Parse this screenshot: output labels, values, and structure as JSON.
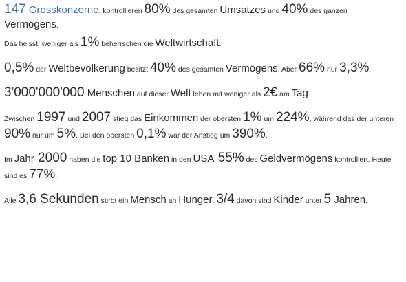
{
  "paragraphs": [
    {
      "segments": [
        {
          "text": "147",
          "size": "b",
          "color": "#3d6fa8"
        },
        {
          "text": " Grosskonzerne",
          "size": "m",
          "color": "#3d6fa8"
        },
        {
          "text": ", kontrollieren ",
          "size": "s"
        },
        {
          "text": "80%",
          "size": "b"
        },
        {
          "text": " des gesamten ",
          "size": "s"
        },
        {
          "text": "Umsatzes",
          "size": "m"
        },
        {
          "text": " und ",
          "size": "s"
        },
        {
          "text": "40%",
          "size": "b"
        },
        {
          "text": " des ganzen ",
          "size": "s"
        },
        {
          "text": "Vermögens",
          "size": "m"
        },
        {
          "text": ".",
          "size": "s"
        }
      ]
    },
    {
      "segments": [
        {
          "text": "Das heisst, weniger als ",
          "size": "s"
        },
        {
          "text": "1%",
          "size": "b"
        },
        {
          "text": " beherrschen die ",
          "size": "s"
        },
        {
          "text": "Weltwirtschaft",
          "size": "m"
        },
        {
          "text": ".",
          "size": "s"
        }
      ]
    },
    {
      "segments": [
        {
          "text": "0,5%",
          "size": "b"
        },
        {
          "text": " der ",
          "size": "s"
        },
        {
          "text": "Weltbevölkerung",
          "size": "m"
        },
        {
          "text": " besitzt ",
          "size": "s"
        },
        {
          "text": "40%",
          "size": "b"
        },
        {
          "text": " des gesamten ",
          "size": "s"
        },
        {
          "text": "Vermögens",
          "size": "m"
        },
        {
          "text": ". Aber ",
          "size": "s"
        },
        {
          "text": "66%",
          "size": "b"
        },
        {
          "text": " nur ",
          "size": "s"
        },
        {
          "text": "3,3%",
          "size": "b"
        },
        {
          "text": ".",
          "size": "s"
        }
      ]
    },
    {
      "segments": [
        {
          "text": "3'000'000'000",
          "size": "b"
        },
        {
          "text": " Menschen",
          "size": "m"
        },
        {
          "text": " auf dieser ",
          "size": "s"
        },
        {
          "text": "Welt",
          "size": "m"
        },
        {
          "text": " leben mit weniger als ",
          "size": "s"
        },
        {
          "text": "2€",
          "size": "b"
        },
        {
          "text": " am ",
          "size": "s"
        },
        {
          "text": "Tag",
          "size": "m"
        },
        {
          "text": ".",
          "size": "s"
        }
      ]
    },
    {
      "segments": [
        {
          "text": "Zwischen ",
          "size": "s"
        },
        {
          "text": "1997",
          "size": "b"
        },
        {
          "text": " und ",
          "size": "s"
        },
        {
          "text": "2007",
          "size": "b"
        },
        {
          "text": " stieg das ",
          "size": "s"
        },
        {
          "text": "Einkommen",
          "size": "m"
        },
        {
          "text": " der obersten ",
          "size": "s"
        },
        {
          "text": "1%",
          "size": "b"
        },
        {
          "text": " um ",
          "size": "s"
        },
        {
          "text": "224%",
          "size": "b"
        },
        {
          "text": ", während das der unteren ",
          "size": "s"
        },
        {
          "text": "90%",
          "size": "b"
        },
        {
          "text": " nur um ",
          "size": "s"
        },
        {
          "text": "5%",
          "size": "b"
        },
        {
          "text": ". Bei den obersten ",
          "size": "s"
        },
        {
          "text": "0,1%",
          "size": "b"
        },
        {
          "text": " war der Anstieg um ",
          "size": "s"
        },
        {
          "text": "390%",
          "size": "b"
        },
        {
          "text": ".",
          "size": "s"
        }
      ]
    },
    {
      "segments": [
        {
          "text": "Im ",
          "size": "s"
        },
        {
          "text": "Jahr",
          "size": "m"
        },
        {
          "text": " 2000",
          "size": "b"
        },
        {
          "text": " haben die ",
          "size": "s"
        },
        {
          "text": "top 10 Banken",
          "size": "m"
        },
        {
          "text": " in den ",
          "size": "s"
        },
        {
          "text": "USA",
          "size": "m"
        },
        {
          "text": " 55%",
          "size": "b"
        },
        {
          "text": " des ",
          "size": "s"
        },
        {
          "text": "Geldvermögens",
          "size": "m"
        },
        {
          "text": " kontrolliert. Heute sind es ",
          "size": "s"
        },
        {
          "text": "77%",
          "size": "b"
        },
        {
          "text": ".",
          "size": "s"
        }
      ]
    },
    {
      "segments": [
        {
          "text": "Alle ",
          "size": "s"
        },
        {
          "text": "3,6 Sekunden",
          "size": "b"
        },
        {
          "text": " stirbt ein ",
          "size": "s"
        },
        {
          "text": "Mensch",
          "size": "m"
        },
        {
          "text": " an ",
          "size": "s"
        },
        {
          "text": "Hunger",
          "size": "m"
        },
        {
          "text": ". ",
          "size": "s"
        },
        {
          "text": "3/4",
          "size": "b"
        },
        {
          "text": " davon sind ",
          "size": "s"
        },
        {
          "text": "Kinder",
          "size": "m"
        },
        {
          "text": " unter ",
          "size": "s"
        },
        {
          "text": "5",
          "size": "b"
        },
        {
          "text": " Jahren",
          "size": "m"
        },
        {
          "text": ".",
          "size": "s"
        }
      ]
    }
  ]
}
